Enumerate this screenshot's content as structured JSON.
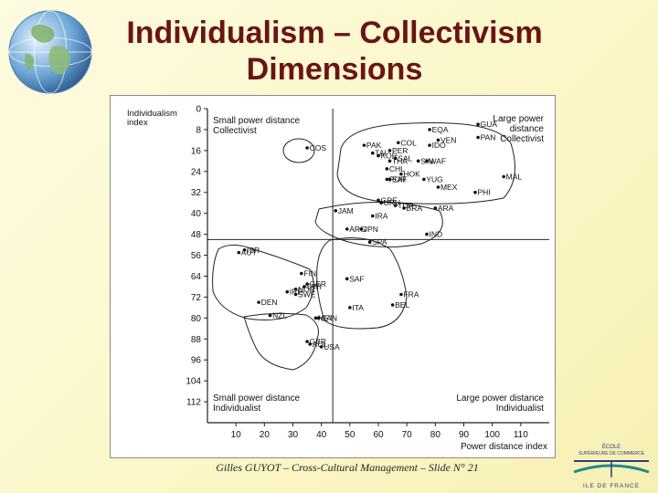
{
  "slide": {
    "title_line1": "Individualism – Collectivism",
    "title_line2": "Dimensions",
    "footer": "Gilles GUYOT – Cross-Cultural Management – Slide N° 21"
  },
  "colors": {
    "title": "#6b1414",
    "background": "#fbf7c8",
    "logo_blue": "#2b3f7a",
    "logo_teal": "#1f8a8a"
  },
  "chart_data": {
    "type": "scatter",
    "xlabel": "Power distance index",
    "ylabel_line1": "Individualism",
    "ylabel_line2": "index",
    "x_ticks": [
      10,
      20,
      30,
      40,
      50,
      60,
      70,
      80,
      90,
      100,
      110
    ],
    "y_ticks": [
      0,
      8,
      16,
      24,
      32,
      40,
      48,
      56,
      64,
      72,
      80,
      88,
      96,
      104,
      112
    ],
    "xlim": [
      0,
      120
    ],
    "ylim": [
      0,
      120
    ],
    "y_inverted": true,
    "divider_x": 44,
    "divider_y": 50,
    "quadrant_labels": {
      "top_left": [
        "Small power distance",
        "Collectivist"
      ],
      "top_right": [
        "Large power",
        "distance",
        "Collectivist"
      ],
      "bottom_left": [
        "Small power distance",
        "Individualist"
      ],
      "bottom_right": [
        "Large power distance",
        "Individualist"
      ]
    },
    "points": [
      {
        "code": "COS",
        "x": 35,
        "y": 15
      },
      {
        "code": "COL",
        "x": 67,
        "y": 13
      },
      {
        "code": "EQA",
        "x": 78,
        "y": 8
      },
      {
        "code": "GUA",
        "x": 95,
        "y": 6
      },
      {
        "code": "PAN",
        "x": 95,
        "y": 11
      },
      {
        "code": "VEN",
        "x": 81,
        "y": 12
      },
      {
        "code": "IDO",
        "x": 78,
        "y": 14
      },
      {
        "code": "PAK",
        "x": 55,
        "y": 14
      },
      {
        "code": "TAI",
        "x": 58,
        "y": 17
      },
      {
        "code": "PER",
        "x": 64,
        "y": 16
      },
      {
        "code": "SAL",
        "x": 66,
        "y": 19
      },
      {
        "code": "SIN",
        "x": 74,
        "y": 20
      },
      {
        "code": "KOR",
        "x": 60,
        "y": 18
      },
      {
        "code": "THA",
        "x": 64,
        "y": 20
      },
      {
        "code": "WAF",
        "x": 77,
        "y": 20
      },
      {
        "code": "CHL",
        "x": 63,
        "y": 23
      },
      {
        "code": "HOK",
        "x": 68,
        "y": 25
      },
      {
        "code": "POR",
        "x": 63,
        "y": 27
      },
      {
        "code": "EAF",
        "x": 64,
        "y": 27
      },
      {
        "code": "YUG",
        "x": 76,
        "y": 27
      },
      {
        "code": "MEX",
        "x": 81,
        "y": 30
      },
      {
        "code": "MAL",
        "x": 104,
        "y": 26
      },
      {
        "code": "PHI",
        "x": 94,
        "y": 32
      },
      {
        "code": "GRE",
        "x": 60,
        "y": 35
      },
      {
        "code": "URU",
        "x": 61,
        "y": 36
      },
      {
        "code": "JAM",
        "x": 45,
        "y": 39
      },
      {
        "code": "TUR",
        "x": 66,
        "y": 37
      },
      {
        "code": "BRA",
        "x": 69,
        "y": 38
      },
      {
        "code": "ARA",
        "x": 80,
        "y": 38
      },
      {
        "code": "IRA",
        "x": 58,
        "y": 41
      },
      {
        "code": "ARG",
        "x": 49,
        "y": 46
      },
      {
        "code": "JPN",
        "x": 54,
        "y": 46
      },
      {
        "code": "IND",
        "x": 77,
        "y": 48
      },
      {
        "code": "SPA",
        "x": 57,
        "y": 51
      },
      {
        "code": "ISR",
        "x": 13,
        "y": 54
      },
      {
        "code": "AUT",
        "x": 11,
        "y": 55
      },
      {
        "code": "FIN",
        "x": 33,
        "y": 63
      },
      {
        "code": "GER",
        "x": 35,
        "y": 67
      },
      {
        "code": "NOR",
        "x": 31,
        "y": 69
      },
      {
        "code": "SWI",
        "x": 34,
        "y": 68
      },
      {
        "code": "IRE",
        "x": 28,
        "y": 70
      },
      {
        "code": "SWE",
        "x": 31,
        "y": 71
      },
      {
        "code": "DEN",
        "x": 18,
        "y": 74
      },
      {
        "code": "SAF",
        "x": 49,
        "y": 65
      },
      {
        "code": "FRA",
        "x": 68,
        "y": 71
      },
      {
        "code": "BEL",
        "x": 65,
        "y": 75
      },
      {
        "code": "ITA",
        "x": 50,
        "y": 76
      },
      {
        "code": "NZL",
        "x": 22,
        "y": 79
      },
      {
        "code": "NET",
        "x": 38,
        "y": 80
      },
      {
        "code": "CAN",
        "x": 39,
        "y": 80
      },
      {
        "code": "GBR",
        "x": 35,
        "y": 89
      },
      {
        "code": "AUL",
        "x": 36,
        "y": 90
      },
      {
        "code": "USA",
        "x": 40,
        "y": 91
      }
    ]
  },
  "logo": {
    "line1": "ÉCOLE",
    "line2": "SUPÉRIEURE DE COMMERCE",
    "line3": "ILE DE FRANCE"
  }
}
